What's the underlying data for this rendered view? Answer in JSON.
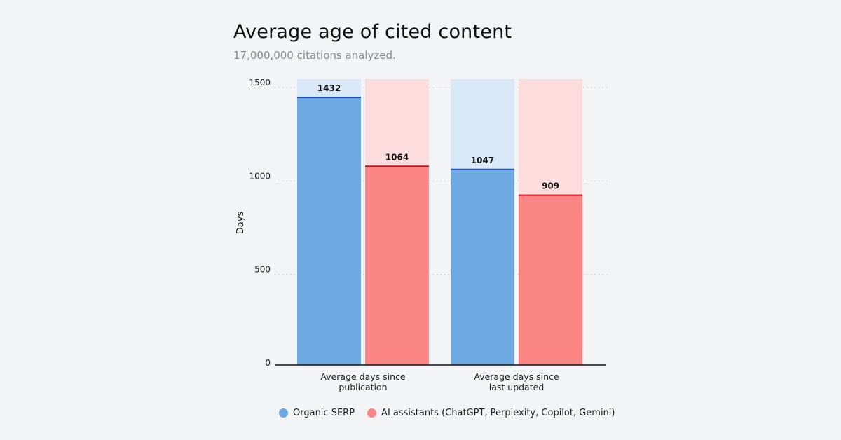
{
  "chart_data": {
    "type": "bar",
    "title": "Average age of cited content",
    "subtitle": "17,000,000 citations analyzed.",
    "ylabel": "Days",
    "xlabel": "",
    "ylim": [
      0,
      1500
    ],
    "yticks": [
      0,
      500,
      1000,
      1500
    ],
    "grid": true,
    "legend_position": "bottom",
    "categories": [
      [
        "Average days since",
        "publication"
      ],
      [
        "Average days since",
        "last updated"
      ]
    ],
    "series": [
      {
        "name": "Organic SERP",
        "values": [
          1432,
          1047
        ],
        "color": "#6da9e0",
        "background": "#d8e8f8",
        "line": "#1d4fc4"
      },
      {
        "name": "AI assistants (ChatGPT, Perplexity, Copilot, Gemini)",
        "values": [
          1064,
          909
        ],
        "color": "#fb8484",
        "background": "#fddcdd",
        "line": "#c8101c"
      }
    ]
  }
}
